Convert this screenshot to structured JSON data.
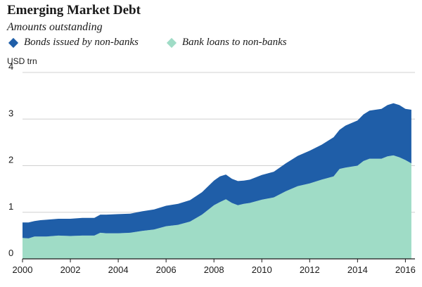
{
  "chart_data": {
    "type": "area",
    "stacked": true,
    "title": "Emerging Market Debt",
    "subtitle": "Amounts outstanding",
    "ylabel": "USD trn",
    "xlabel": "",
    "xlim": [
      2000,
      2016.4
    ],
    "ylim": [
      0,
      4
    ],
    "x_ticks": [
      "2000",
      "2002",
      "2004",
      "2006",
      "2008",
      "2010",
      "2012",
      "2014",
      "2016"
    ],
    "y_ticks": [
      "0",
      "1",
      "2",
      "3",
      "4"
    ],
    "grid": "horizontal",
    "legend_position": "top",
    "x": [
      2000.0,
      2000.25,
      2000.5,
      2000.75,
      2001.0,
      2001.5,
      2002.0,
      2002.5,
      2003.0,
      2003.25,
      2003.5,
      2004.0,
      2004.5,
      2005.0,
      2005.5,
      2006.0,
      2006.5,
      2007.0,
      2007.5,
      2008.0,
      2008.25,
      2008.5,
      2008.75,
      2009.0,
      2009.25,
      2009.5,
      2010.0,
      2010.5,
      2011.0,
      2011.5,
      2012.0,
      2012.5,
      2013.0,
      2013.25,
      2013.5,
      2014.0,
      2014.25,
      2014.5,
      2015.0,
      2015.25,
      2015.5,
      2015.75,
      2016.0,
      2016.25
    ],
    "series": [
      {
        "name": "Bank loans to non-banks",
        "color": "#9fdcc6",
        "values": [
          0.45,
          0.44,
          0.48,
          0.48,
          0.48,
          0.5,
          0.49,
          0.5,
          0.5,
          0.56,
          0.55,
          0.55,
          0.56,
          0.6,
          0.63,
          0.7,
          0.73,
          0.8,
          0.95,
          1.15,
          1.22,
          1.28,
          1.2,
          1.15,
          1.18,
          1.2,
          1.27,
          1.32,
          1.45,
          1.56,
          1.62,
          1.7,
          1.77,
          1.93,
          1.96,
          2.0,
          2.1,
          2.15,
          2.15,
          2.2,
          2.22,
          2.18,
          2.12,
          2.05
        ]
      },
      {
        "name": "Bonds issued by non-banks",
        "color": "#1f5ea8",
        "values": [
          0.33,
          0.34,
          0.33,
          0.35,
          0.36,
          0.36,
          0.37,
          0.38,
          0.38,
          0.39,
          0.4,
          0.41,
          0.41,
          0.42,
          0.43,
          0.44,
          0.45,
          0.46,
          0.48,
          0.53,
          0.55,
          0.53,
          0.52,
          0.52,
          0.5,
          0.5,
          0.53,
          0.55,
          0.6,
          0.65,
          0.7,
          0.75,
          0.84,
          0.84,
          0.9,
          0.97,
          1.0,
          1.03,
          1.07,
          1.1,
          1.12,
          1.12,
          1.1,
          1.15
        ]
      }
    ]
  }
}
